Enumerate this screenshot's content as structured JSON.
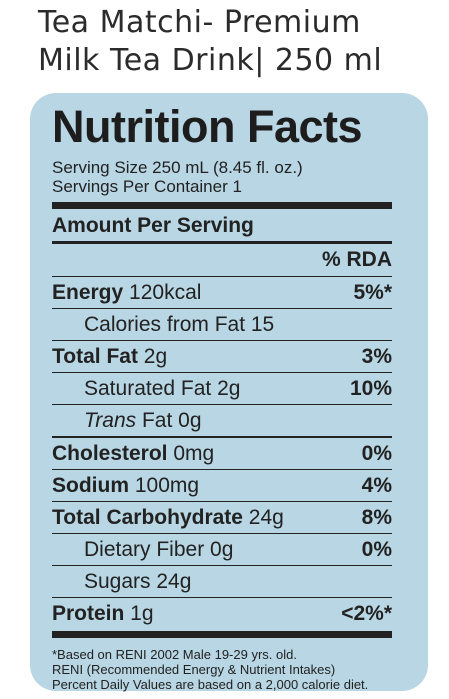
{
  "product": {
    "title_line1": "Tea Matchi- Premium",
    "title_line2": "Milk Tea Drink| 250 ml"
  },
  "label": {
    "heading": "Nutrition Facts",
    "serving_size": "Serving Size 250 mL (8.45 fl. oz.)",
    "servings_per_container": "Servings Per Container 1",
    "amount_per_serving": "Amount Per Serving",
    "rda_header": "% RDA"
  },
  "nutrients": [
    {
      "name": "Energy",
      "value": " 120kcal",
      "pct": "5%*"
    },
    {
      "name": "",
      "value": "Calories from Fat 15",
      "pct": ""
    },
    {
      "name": "Total Fat",
      "value": " 2g",
      "pct": "3%"
    },
    {
      "name": "",
      "value": "Saturated Fat 2g",
      "pct": "10%"
    },
    {
      "name": "Trans",
      "value": " Fat 0g",
      "pct": ""
    },
    {
      "name": "Cholesterol",
      "value": " 0mg",
      "pct": "0%"
    },
    {
      "name": "Sodium",
      "value": " 100mg",
      "pct": "4%"
    },
    {
      "name": "Total Carbohydrate",
      "value": " 24g",
      "pct": "8%"
    },
    {
      "name": "",
      "value": "Dietary Fiber 0g",
      "pct": "0%"
    },
    {
      "name": "",
      "value": "Sugars 24g",
      "pct": ""
    },
    {
      "name": "Protein",
      "value": " 1g",
      "pct": "<2%*"
    }
  ],
  "footnotes": {
    "line1": "*Based on RENI 2002 Male 19-29 yrs. old.",
    "line2": "RENI (Recommended Energy & Nutrient Intakes)",
    "line3": "Percent Daily Values are based on a 2,000 calorie diet."
  },
  "colors": {
    "panel_background": "#b8d6e3",
    "text": "#222222"
  }
}
